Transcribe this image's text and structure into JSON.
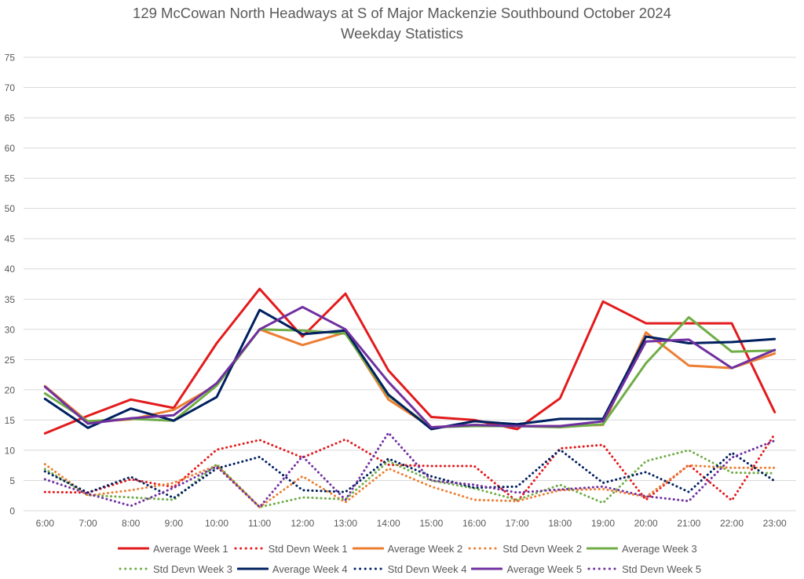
{
  "chart_data": {
    "type": "line",
    "title": "129 McCowan North Headways at S of Major Mackenzie Southbound October 2024",
    "subtitle": "Weekday Statistics",
    "xlabel": "",
    "ylabel": "",
    "ylim": [
      0,
      75
    ],
    "ytick_step": 5,
    "yticks": [
      "0",
      "5",
      "10",
      "15",
      "20",
      "25",
      "30",
      "35",
      "40",
      "45",
      "50",
      "55",
      "60",
      "65",
      "70",
      "75"
    ],
    "grid": true,
    "legend_position": "bottom",
    "categories": [
      "6:00",
      "7:00",
      "8:00",
      "9:00",
      "10:00",
      "11:00",
      "12:00",
      "13:00",
      "14:00",
      "15:00",
      "16:00",
      "17:00",
      "18:00",
      "19:00",
      "20:00",
      "21:00",
      "22:00",
      "23:00"
    ],
    "series": [
      {
        "name": "Average Week 1",
        "style": "solid",
        "color": "#E31A1C",
        "values": [
          12.8,
          15.7,
          18.4,
          17.0,
          27.7,
          36.7,
          28.8,
          35.9,
          23.2,
          15.5,
          15.0,
          13.5,
          18.6,
          34.6,
          31.0,
          31.0,
          31.0,
          16.3
        ]
      },
      {
        "name": "Std Devn Week 1",
        "style": "dotted",
        "color": "#E31A1C",
        "values": [
          3.1,
          3.0,
          5.2,
          3.9,
          10.1,
          11.7,
          8.8,
          11.8,
          7.6,
          7.4,
          7.4,
          1.5,
          10.3,
          10.9,
          1.8,
          7.6,
          1.7,
          12.7
        ]
      },
      {
        "name": "Average Week 2",
        "style": "solid",
        "color": "#ED7D31",
        "values": [
          20.6,
          14.7,
          15.1,
          16.7,
          20.8,
          30.0,
          27.4,
          29.5,
          18.4,
          13.8,
          14.2,
          14.0,
          14.0,
          14.2,
          29.5,
          24.0,
          23.6,
          26.0
        ]
      },
      {
        "name": "Std Devn Week 2",
        "style": "dotted",
        "color": "#ED7D31",
        "values": [
          7.7,
          2.5,
          3.4,
          4.6,
          7.5,
          0.6,
          5.7,
          1.4,
          7.0,
          4.0,
          1.8,
          1.6,
          3.4,
          3.6,
          2.3,
          7.5,
          7.1,
          7.1
        ]
      },
      {
        "name": "Average Week 3",
        "style": "solid",
        "color": "#70AD47",
        "values": [
          19.4,
          14.8,
          15.2,
          14.9,
          20.7,
          30.0,
          29.8,
          29.3,
          19.0,
          13.8,
          14.0,
          14.0,
          13.8,
          14.3,
          24.4,
          32.0,
          26.3,
          26.5
        ]
      },
      {
        "name": "Std Devn Week 3",
        "style": "dotted",
        "color": "#70AD47",
        "values": [
          6.9,
          2.6,
          2.2,
          1.8,
          7.7,
          0.6,
          2.2,
          1.9,
          8.2,
          5.0,
          3.7,
          1.8,
          4.3,
          1.3,
          8.2,
          10.0,
          6.3,
          6.2
        ]
      },
      {
        "name": "Average Week 4",
        "style": "solid",
        "color": "#002060",
        "values": [
          18.5,
          13.7,
          16.9,
          14.9,
          18.8,
          33.2,
          29.2,
          29.8,
          19.2,
          13.5,
          14.8,
          14.3,
          15.2,
          15.2,
          28.8,
          27.7,
          27.9,
          28.4
        ]
      },
      {
        "name": "Std Devn Week 4",
        "style": "dotted",
        "color": "#002060",
        "values": [
          6.5,
          3.0,
          5.6,
          2.1,
          7.0,
          8.9,
          3.4,
          3.1,
          8.6,
          5.7,
          3.8,
          4.0,
          10.1,
          4.6,
          6.4,
          3.1,
          9.6,
          4.9
        ]
      },
      {
        "name": "Average Week 5",
        "style": "solid",
        "color": "#7030A0",
        "values": [
          20.5,
          14.4,
          15.3,
          15.8,
          21.1,
          30.0,
          33.7,
          30.0,
          21.3,
          13.8,
          14.2,
          14.0,
          14.0,
          14.8,
          28.0,
          28.3,
          23.6,
          26.6
        ]
      },
      {
        "name": "Std Devn Week 5",
        "style": "dotted",
        "color": "#7030A0",
        "values": [
          5.2,
          2.8,
          0.8,
          3.8,
          7.3,
          0.6,
          9.0,
          1.8,
          12.9,
          5.0,
          4.3,
          3.0,
          3.5,
          4.0,
          2.4,
          1.6,
          8.8,
          11.6
        ]
      }
    ]
  }
}
